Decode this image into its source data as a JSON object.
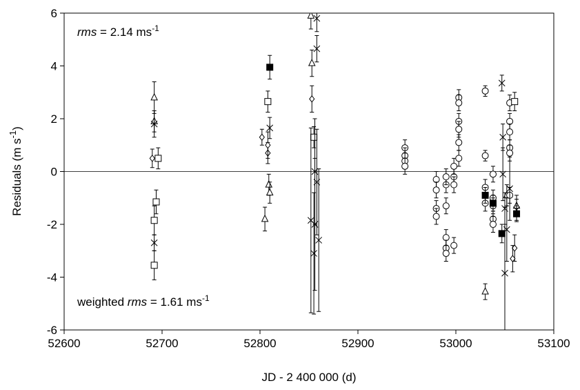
{
  "chart_data": {
    "type": "scatter",
    "x_label": "JD - 2 400 000 (d)",
    "y_label": {
      "text": "Residuals (m s",
      "sup": "-1",
      "end": ")"
    },
    "annotation_top": {
      "italic": "rms",
      "text": " = 2.14 ms",
      "sup": "-1"
    },
    "annotation_bottom": {
      "prefix": "weighted ",
      "italic": "rms",
      "text": " = 1.61 ms",
      "sup": "-1"
    },
    "xlim": [
      52600,
      53100
    ],
    "xticks": [
      52600,
      52700,
      52800,
      52900,
      53000,
      53100
    ],
    "ylim": [
      -6,
      6
    ],
    "yticks": [
      -6,
      -4,
      -2,
      0,
      2,
      4,
      6
    ],
    "zero_line": true,
    "series": [
      {
        "marker": "triangle",
        "color": "#000000",
        "x": [
          52692,
          52692,
          52805,
          52809,
          52810,
          52852,
          52853,
          53030,
          53052,
          53062
        ],
        "values": [
          2.8,
          1.9,
          -1.8,
          -0.5,
          -0.8,
          5.9,
          4.1,
          -4.55,
          -0.9,
          -1.3
        ],
        "errors": [
          0.6,
          0.4,
          0.45,
          0.4,
          0.4,
          0.5,
          0.5,
          0.3,
          0.4,
          0.4
        ]
      },
      {
        "marker": "circle",
        "color": "#000000",
        "x": [
          52948,
          52948,
          52948,
          52948,
          52980,
          52980,
          52980,
          52980,
          52990,
          52990,
          52990,
          52990,
          52990,
          52990,
          52998,
          52998,
          52998,
          52998,
          53003,
          53003,
          53003,
          53003,
          53003,
          53003,
          53030,
          53030,
          53030,
          53030,
          53038,
          53038,
          53038,
          53038,
          53038,
          53055,
          53055,
          53055,
          53055,
          53055,
          53055
        ],
        "values": [
          0.9,
          0.6,
          0.4,
          0.2,
          -0.3,
          -0.7,
          -1.4,
          -1.7,
          -0.5,
          -1.3,
          -2.5,
          -2.9,
          -3.1,
          -0.2,
          -0.2,
          0.2,
          -0.5,
          -2.8,
          2.8,
          2.6,
          1.9,
          1.6,
          1.1,
          0.5,
          3.05,
          0.6,
          -0.6,
          -1.2,
          -0.1,
          -1.0,
          -1.3,
          -1.8,
          -2.0,
          2.6,
          1.9,
          1.5,
          0.9,
          0.7,
          -0.9
        ],
        "errors": [
          0.3,
          0.3,
          0.3,
          0.3,
          0.3,
          0.3,
          0.3,
          0.3,
          0.3,
          0.3,
          0.3,
          0.3,
          0.3,
          0.3,
          0.3,
          0.3,
          0.3,
          0.3,
          0.3,
          0.3,
          0.3,
          0.3,
          0.3,
          0.3,
          0.2,
          0.2,
          0.3,
          0.3,
          0.3,
          0.3,
          0.3,
          0.3,
          0.3,
          0.3,
          0.3,
          0.3,
          0.3,
          0.3,
          0.3
        ]
      },
      {
        "marker": "square",
        "color": "#000000",
        "x": [
          52692,
          52692,
          52694,
          52696,
          52808,
          52855,
          53060
        ],
        "values": [
          -3.55,
          -1.85,
          -1.15,
          0.5,
          2.65,
          1.3,
          2.65
        ],
        "errors": [
          0.55,
          0.55,
          0.45,
          0.4,
          0.4,
          0.4,
          0.35
        ]
      },
      {
        "marker": "filled-square",
        "color": "#000000",
        "x": [
          52810,
          53047,
          53062,
          53030,
          53038
        ],
        "values": [
          3.95,
          -2.35,
          -1.6,
          -0.9,
          -1.2
        ],
        "errors": [
          0.45,
          0.35,
          0.3,
          0.3,
          0.3
        ]
      },
      {
        "marker": "diamond",
        "color": "#000000",
        "x": [
          52690,
          52802,
          52808,
          52808,
          52853,
          53060,
          53058
        ],
        "values": [
          0.5,
          1.3,
          0.7,
          1.0,
          2.75,
          -2.9,
          -3.3
        ],
        "errors": [
          0.35,
          0.3,
          0.4,
          0.5,
          0.5,
          0.5,
          0.5
        ]
      },
      {
        "marker": "cross",
        "color": "#000000",
        "x": [
          52858,
          52858,
          52852,
          52855,
          52858,
          52860,
          53047,
          53050,
          53048,
          53052,
          53055,
          53048
        ],
        "values": [
          5.8,
          4.65,
          -1.85,
          -3.1,
          -0.4,
          -2.6,
          3.35,
          -3.85,
          1.3,
          -2.2,
          -0.65,
          -0.1
        ],
        "errors": [
          0.5,
          0.5,
          3.5,
          2.3,
          2.0,
          2.7,
          0.3,
          2.5,
          0.5,
          1.2,
          1.2,
          1.0
        ]
      },
      {
        "marker": "asterisk",
        "color": "#000000",
        "x": [
          52692,
          52692,
          52810,
          52856,
          52856,
          53050,
          53062
        ],
        "values": [
          1.8,
          -2.7,
          1.65,
          -2.0,
          0.0,
          -1.4,
          -1.45
        ],
        "errors": [
          0.5,
          0.3,
          0.4,
          2.5,
          2.0,
          0.6,
          0.4
        ]
      }
    ]
  }
}
